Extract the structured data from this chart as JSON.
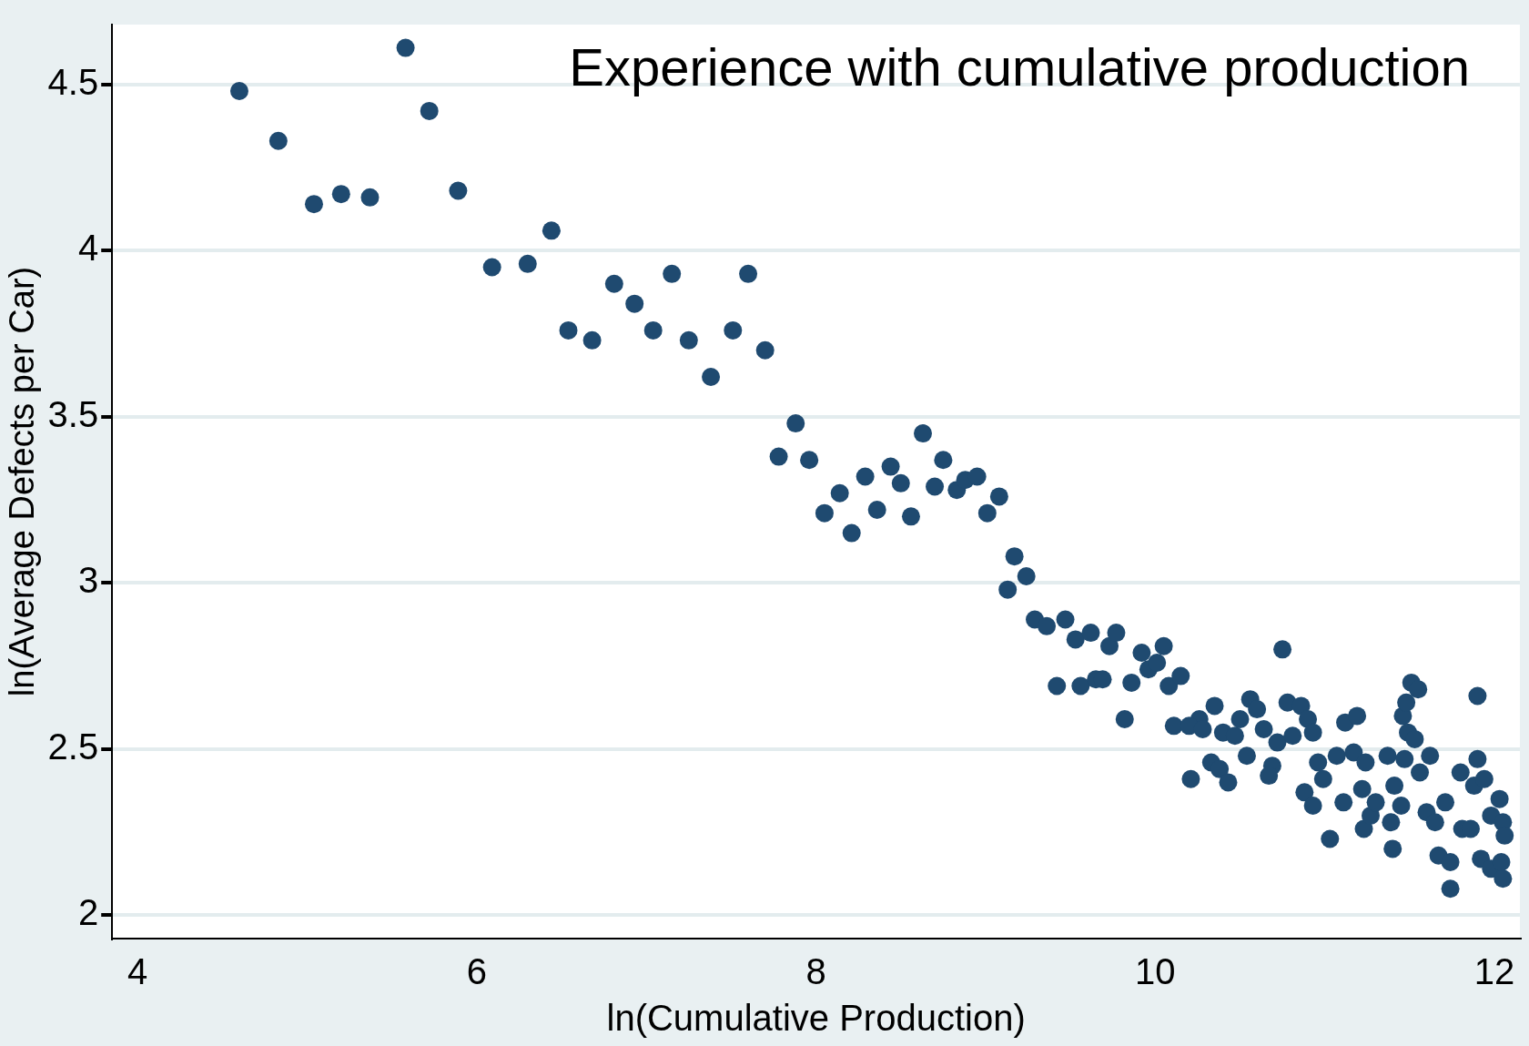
{
  "chart_data": {
    "type": "scatter",
    "title": "Experience with cumulative production",
    "xlabel": "ln(Cumulative Production)",
    "ylabel": "ln(Average Defects per Car)",
    "xlim": [
      3.85,
      12.15
    ],
    "ylim": [
      1.93,
      4.68
    ],
    "xticks": [
      4,
      6,
      8,
      10,
      12
    ],
    "yticks": [
      2,
      2.5,
      3,
      3.5,
      4,
      4.5
    ],
    "grid": "y",
    "legend": false,
    "marker": "circle",
    "series": [
      {
        "color": "#1f4a70",
        "x": [
          4.6,
          4.83,
          5.04,
          5.2,
          5.37,
          5.58,
          5.72,
          5.89,
          6.09,
          6.3,
          6.44,
          6.54,
          6.68,
          6.81,
          6.93,
          7.04,
          7.15,
          7.25,
          7.38,
          7.51,
          7.6,
          7.7,
          7.78,
          7.88,
          7.96,
          8.05,
          8.14,
          8.21,
          8.29,
          8.36,
          8.44,
          8.5,
          8.56,
          8.63,
          8.7,
          8.75,
          8.83,
          8.88,
          8.95,
          9.01,
          9.08,
          9.13,
          9.17,
          9.24,
          9.29,
          9.36,
          9.42,
          9.47,
          9.53,
          9.56,
          9.62,
          9.65,
          9.69,
          9.73,
          9.77,
          9.82,
          9.86,
          9.92,
          9.96,
          10.01,
          10.05,
          10.08,
          10.11,
          10.15,
          10.21,
          10.35,
          10.26,
          10.2,
          10.28,
          10.33,
          10.38,
          10.43,
          10.4,
          10.47,
          10.5,
          10.56,
          10.54,
          10.6,
          10.64,
          10.69,
          10.67,
          10.72,
          10.75,
          10.78,
          10.86,
          10.9,
          10.93,
          10.81,
          10.88,
          10.93,
          10.96,
          10.99,
          11.03,
          11.07,
          11.11,
          11.12,
          11.19,
          11.17,
          11.22,
          11.24,
          11.23,
          11.27,
          11.3,
          11.37,
          11.4,
          11.39,
          11.41,
          11.45,
          11.47,
          11.46,
          11.48,
          11.51,
          11.55,
          11.49,
          11.53,
          11.56,
          11.62,
          11.6,
          11.65,
          11.67,
          11.74,
          11.74,
          11.71,
          11.8,
          11.81,
          11.88,
          11.9,
          11.9,
          11.92,
          11.94,
          11.98,
          11.98,
          12.03,
          12.05,
          12.06,
          12.05,
          12.04,
          11.86
        ],
        "values": [
          4.48,
          4.33,
          4.14,
          4.17,
          4.16,
          4.61,
          4.42,
          4.18,
          3.95,
          3.96,
          4.06,
          3.76,
          3.73,
          3.9,
          3.84,
          3.76,
          3.93,
          3.73,
          3.62,
          3.76,
          3.93,
          3.7,
          3.38,
          3.48,
          3.37,
          3.21,
          3.27,
          3.15,
          3.32,
          3.22,
          3.35,
          3.3,
          3.2,
          3.45,
          3.29,
          3.37,
          3.28,
          3.31,
          3.32,
          3.21,
          3.26,
          2.98,
          3.08,
          3.02,
          2.89,
          2.87,
          2.69,
          2.89,
          2.83,
          2.69,
          2.85,
          2.71,
          2.71,
          2.81,
          2.85,
          2.59,
          2.7,
          2.79,
          2.74,
          2.76,
          2.81,
          2.69,
          2.57,
          2.72,
          2.41,
          2.63,
          2.59,
          2.57,
          2.56,
          2.46,
          2.44,
          2.4,
          2.55,
          2.54,
          2.59,
          2.65,
          2.48,
          2.62,
          2.56,
          2.45,
          2.42,
          2.52,
          2.8,
          2.64,
          2.63,
          2.59,
          2.55,
          2.54,
          2.37,
          2.33,
          2.46,
          2.41,
          2.23,
          2.48,
          2.34,
          2.58,
          2.6,
          2.49,
          2.38,
          2.46,
          2.26,
          2.3,
          2.34,
          2.48,
          2.2,
          2.28,
          2.39,
          2.33,
          2.47,
          2.6,
          2.64,
          2.7,
          2.68,
          2.55,
          2.53,
          2.43,
          2.48,
          2.31,
          2.28,
          2.18,
          2.16,
          2.08,
          2.34,
          2.43,
          2.26,
          2.39,
          2.66,
          2.47,
          2.17,
          2.41,
          2.3,
          2.14,
          2.35,
          2.28,
          2.24,
          2.11,
          2.16,
          2.26
        ]
      }
    ]
  }
}
